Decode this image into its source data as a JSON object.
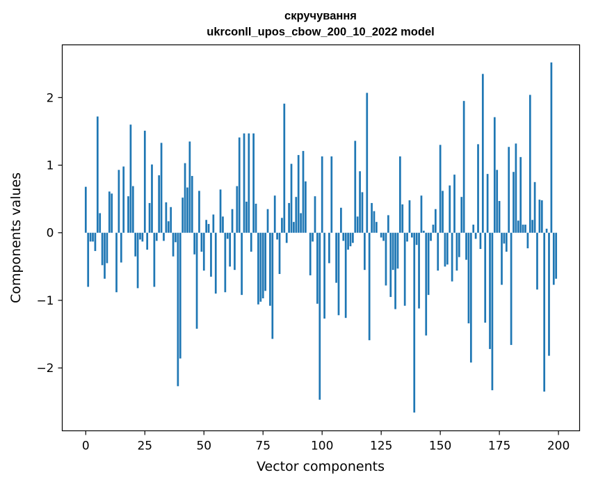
{
  "chart_data": {
    "type": "bar",
    "title": "скручування",
    "subtitle": "ukrconll_upos_cbow_200_10_2022 model",
    "xlabel": "Vector components",
    "ylabel": "Components values",
    "xlim": [
      -9.95,
      208.95
    ],
    "ylim": [
      -2.93,
      2.78
    ],
    "xticks": [
      0,
      25,
      50,
      75,
      100,
      125,
      150,
      175,
      200
    ],
    "yticks": [
      -2,
      -1,
      0,
      1,
      2
    ],
    "xtick_labels": [
      "0",
      "25",
      "50",
      "75",
      "100",
      "125",
      "150",
      "175",
      "200"
    ],
    "ytick_labels": [
      "−2",
      "−1",
      "0",
      "1",
      "2"
    ],
    "bar_color": "#1f77b4",
    "grid": false,
    "x": [
      0,
      1,
      2,
      3,
      4,
      5,
      6,
      7,
      8,
      9,
      10,
      11,
      12,
      13,
      14,
      15,
      16,
      17,
      18,
      19,
      20,
      21,
      22,
      23,
      24,
      25,
      26,
      27,
      28,
      29,
      30,
      31,
      32,
      33,
      34,
      35,
      36,
      37,
      38,
      39,
      40,
      41,
      42,
      43,
      44,
      45,
      46,
      47,
      48,
      49,
      50,
      51,
      52,
      53,
      54,
      55,
      56,
      57,
      58,
      59,
      60,
      61,
      62,
      63,
      64,
      65,
      66,
      67,
      68,
      69,
      70,
      71,
      72,
      73,
      74,
      75,
      76,
      77,
      78,
      79,
      80,
      81,
      82,
      83,
      84,
      85,
      86,
      87,
      88,
      89,
      90,
      91,
      92,
      93,
      94,
      95,
      96,
      97,
      98,
      99,
      100,
      101,
      102,
      103,
      104,
      105,
      106,
      107,
      108,
      109,
      110,
      111,
      112,
      113,
      114,
      115,
      116,
      117,
      118,
      119,
      120,
      121,
      122,
      123,
      124,
      125,
      126,
      127,
      128,
      129,
      130,
      131,
      132,
      133,
      134,
      135,
      136,
      137,
      138,
      139,
      140,
      141,
      142,
      143,
      144,
      145,
      146,
      147,
      148,
      149,
      150,
      151,
      152,
      153,
      154,
      155,
      156,
      157,
      158,
      159,
      160,
      161,
      162,
      163,
      164,
      165,
      166,
      167,
      168,
      169,
      170,
      171,
      172,
      173,
      174,
      175,
      176,
      177,
      178,
      179,
      180,
      181,
      182,
      183,
      184,
      185,
      186,
      187,
      188,
      189,
      190,
      191,
      192,
      193,
      194,
      195,
      196,
      197,
      198,
      199
    ],
    "values": [
      0.68,
      -0.8,
      -0.13,
      -0.13,
      -0.27,
      1.72,
      0.29,
      -0.48,
      -0.68,
      -0.45,
      0.61,
      0.58,
      0.0,
      -0.88,
      0.93,
      -0.44,
      0.98,
      0.0,
      0.54,
      1.6,
      0.69,
      -0.35,
      -0.82,
      -0.1,
      -0.13,
      1.51,
      -0.25,
      0.44,
      1.01,
      -0.8,
      -0.12,
      0.85,
      1.33,
      -0.12,
      0.45,
      0.17,
      0.38,
      -0.35,
      -0.14,
      -2.27,
      -1.86,
      0.52,
      1.03,
      0.67,
      1.35,
      0.84,
      -0.32,
      -1.42,
      0.62,
      -0.28,
      -0.56,
      0.19,
      0.13,
      -0.65,
      0.27,
      -0.9,
      0.0,
      0.64,
      0.24,
      -0.88,
      -0.09,
      -0.5,
      0.35,
      -0.55,
      0.69,
      1.41,
      -0.92,
      1.47,
      0.46,
      1.47,
      -0.28,
      1.47,
      0.43,
      -1.06,
      -1.02,
      -0.97,
      -0.86,
      0.35,
      -1.08,
      -1.57,
      0.55,
      -0.1,
      -0.61,
      0.22,
      1.91,
      -0.15,
      0.44,
      1.02,
      0.16,
      0.53,
      1.15,
      0.29,
      1.21,
      0.76,
      0.0,
      -0.63,
      -0.13,
      0.54,
      -1.05,
      -2.47,
      1.13,
      -1.27,
      0.0,
      -0.45,
      1.13,
      0.0,
      -0.74,
      -1.22,
      0.37,
      -0.12,
      -1.26,
      -0.25,
      -0.2,
      -0.15,
      1.36,
      0.24,
      0.91,
      0.6,
      -0.55,
      2.07,
      -1.59,
      0.44,
      0.32,
      0.16,
      0.0,
      -0.07,
      -0.12,
      -0.78,
      0.26,
      -0.95,
      -0.55,
      -1.13,
      -0.53,
      1.13,
      0.42,
      -1.08,
      -0.13,
      0.48,
      -0.07,
      -2.66,
      -0.18,
      -1.12,
      0.55,
      0.03,
      -1.52,
      -0.92,
      -0.12,
      0.12,
      0.35,
      -0.56,
      1.3,
      0.62,
      -0.5,
      -0.47,
      0.7,
      -0.72,
      0.86,
      -0.56,
      -0.36,
      0.53,
      1.95,
      -0.4,
      -1.34,
      -1.92,
      0.12,
      -0.09,
      1.31,
      -0.24,
      2.35,
      -1.33,
      0.87,
      -1.72,
      -2.33,
      1.71,
      0.93,
      0.47,
      -0.77,
      -0.16,
      -0.28,
      1.27,
      -1.66,
      0.9,
      1.32,
      0.18,
      1.12,
      0.12,
      0.12,
      -0.23,
      2.04,
      0.19,
      0.75,
      -0.84,
      0.49,
      0.48,
      -2.35,
      0.06,
      -1.82,
      2.52,
      -0.77,
      -0.68
    ]
  }
}
